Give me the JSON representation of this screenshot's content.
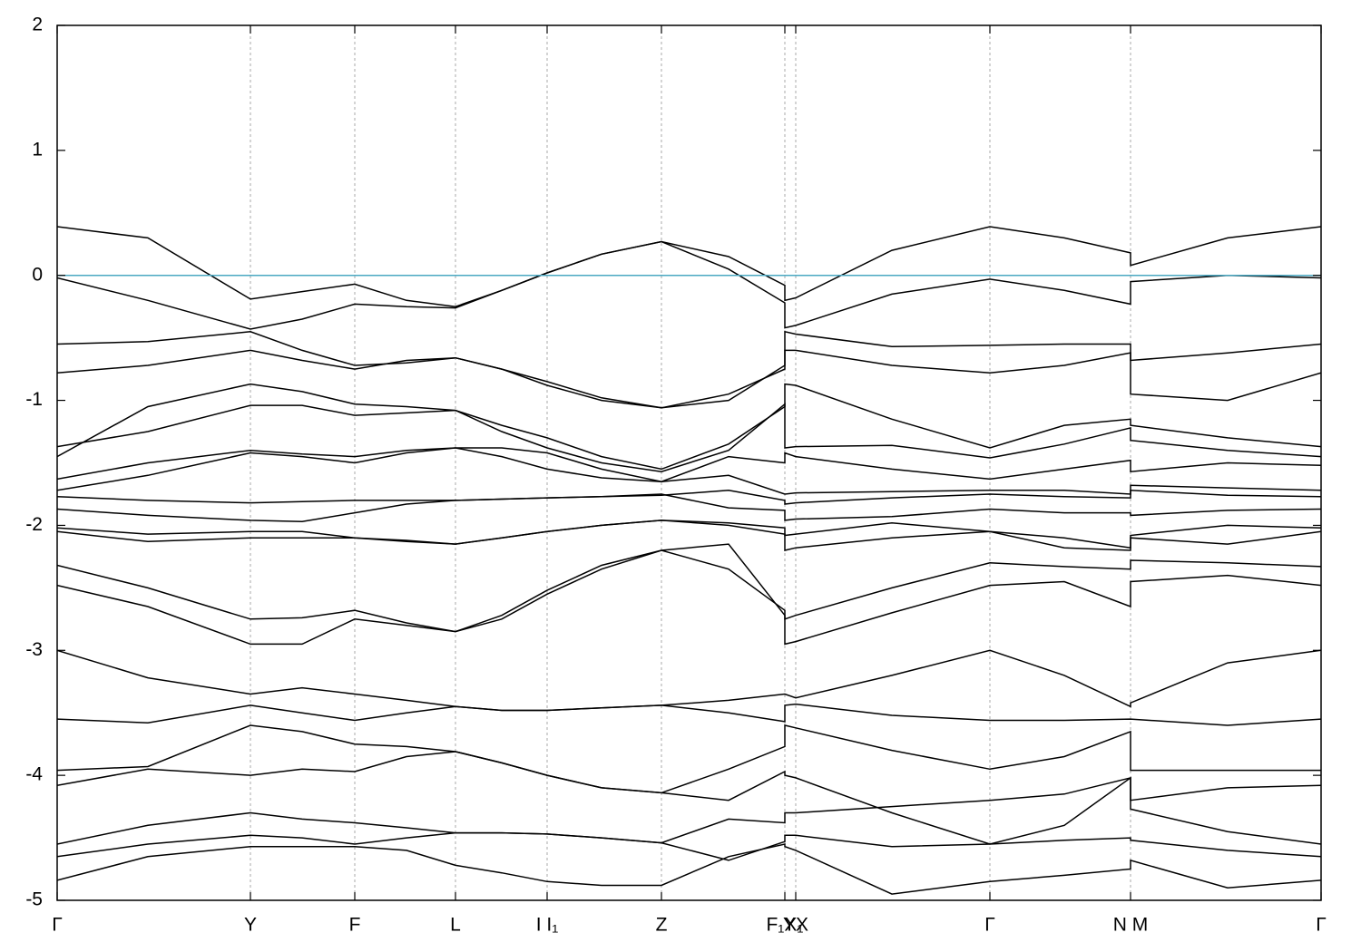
{
  "chart_data": {
    "type": "line",
    "x": [
      0,
      1.0,
      2.13,
      2.7,
      3.28,
      3.85,
      4.39,
      4.9,
      5.4,
      6.0,
      6.66,
      7.4,
      8.02,
      8.02,
      8.14,
      9.2,
      10.28,
      11.1,
      11.83,
      11.83,
      12.9,
      13.93
    ],
    "xlim": [
      0,
      13.93
    ],
    "xticks": [
      {
        "value": 0,
        "label": "Γ"
      },
      {
        "value": 2.13,
        "label": "Y"
      },
      {
        "value": 3.28,
        "label": "F"
      },
      {
        "value": 4.39,
        "label": "L"
      },
      {
        "value": 5.4,
        "label": "I I₁"
      },
      {
        "value": 6.66,
        "label": "Z"
      },
      {
        "value": 8.02,
        "label": "F₁X₁"
      },
      {
        "value": 8.14,
        "label": "YX"
      },
      {
        "value": 10.28,
        "label": "Γ"
      },
      {
        "value": 11.83,
        "label": "N M"
      },
      {
        "value": 13.93,
        "label": "Γ"
      }
    ],
    "ylim": [
      -5,
      2
    ],
    "yticks": [
      2,
      1,
      0,
      -1,
      -2,
      -3,
      -4,
      -5
    ],
    "xgrid": true,
    "series": [
      {
        "color": "#000000",
        "values": [
          0.39,
          0.3,
          -0.19,
          -0.13,
          -0.07,
          -0.2,
          -0.25,
          -0.12,
          0.02,
          0.17,
          0.27,
          0.15,
          -0.08,
          -0.2,
          -0.18,
          0.2,
          0.39,
          0.3,
          0.18,
          0.08,
          0.3,
          0.39
        ]
      },
      {
        "color": "#000000",
        "values": [
          -0.02,
          -0.2,
          -0.43,
          -0.35,
          -0.23,
          -0.25,
          -0.26,
          -0.12,
          0.02,
          0.17,
          0.27,
          0.05,
          -0.22,
          -0.42,
          -0.4,
          -0.15,
          -0.03,
          -0.12,
          -0.23,
          -0.05,
          0.0,
          -0.02
        ]
      },
      {
        "color": "#000000",
        "values": [
          -0.55,
          -0.53,
          -0.45,
          -0.6,
          -0.72,
          -0.7,
          -0.66,
          -0.75,
          -0.88,
          -1.0,
          -1.06,
          -0.95,
          -0.75,
          -0.45,
          -0.47,
          -0.57,
          -0.56,
          -0.55,
          -0.55,
          -0.68,
          -0.62,
          -0.55
        ]
      },
      {
        "color": "#000000",
        "values": [
          -0.78,
          -0.72,
          -0.6,
          -0.68,
          -0.75,
          -0.68,
          -0.66,
          -0.75,
          -0.85,
          -0.98,
          -1.06,
          -1.0,
          -0.72,
          -0.6,
          -0.6,
          -0.72,
          -0.78,
          -0.72,
          -0.62,
          -0.95,
          -1.0,
          -0.78
        ]
      },
      {
        "color": "#000000",
        "values": [
          -1.45,
          -1.05,
          -0.87,
          -0.93,
          -1.03,
          -1.05,
          -1.08,
          -1.2,
          -1.3,
          -1.45,
          -1.55,
          -1.35,
          -1.05,
          -0.87,
          -0.88,
          -1.15,
          -1.38,
          -1.2,
          -1.15,
          -1.2,
          -1.3,
          -1.37
        ]
      },
      {
        "color": "#000000",
        "values": [
          -1.37,
          -1.25,
          -1.04,
          -1.04,
          -1.12,
          -1.1,
          -1.08,
          -1.25,
          -1.38,
          -1.5,
          -1.57,
          -1.4,
          -1.03,
          -1.38,
          -1.37,
          -1.36,
          -1.46,
          -1.35,
          -1.22,
          -1.32,
          -1.4,
          -1.45
        ]
      },
      {
        "color": "#000000",
        "values": [
          -1.63,
          -1.5,
          -1.4,
          -1.43,
          -1.45,
          -1.4,
          -1.38,
          -1.38,
          -1.42,
          -1.55,
          -1.65,
          -1.45,
          -1.5,
          -1.42,
          -1.45,
          -1.55,
          -1.63,
          -1.55,
          -1.48,
          -1.57,
          -1.5,
          -1.52
        ]
      },
      {
        "color": "#000000",
        "values": [
          -1.72,
          -1.6,
          -1.42,
          -1.45,
          -1.5,
          -1.42,
          -1.38,
          -1.45,
          -1.55,
          -1.62,
          -1.65,
          -1.6,
          -1.75,
          -1.75,
          -1.74,
          -1.73,
          -1.72,
          -1.72,
          -1.75,
          -1.68,
          -1.7,
          -1.72
        ]
      },
      {
        "color": "#000000",
        "values": [
          -1.77,
          -1.8,
          -1.82,
          -1.81,
          -1.8,
          -1.8,
          -1.8,
          -1.79,
          -1.78,
          -1.77,
          -1.76,
          -1.72,
          -1.8,
          -1.83,
          -1.82,
          -1.78,
          -1.75,
          -1.77,
          -1.78,
          -1.72,
          -1.76,
          -1.77
        ]
      },
      {
        "color": "#000000",
        "values": [
          -1.87,
          -1.92,
          -1.96,
          -1.97,
          -1.9,
          -1.83,
          -1.8,
          -1.79,
          -1.78,
          -1.77,
          -1.75,
          -1.86,
          -1.88,
          -1.96,
          -1.95,
          -1.93,
          -1.87,
          -1.9,
          -1.9,
          -1.92,
          -1.88,
          -1.87
        ]
      },
      {
        "color": "#000000",
        "values": [
          -2.02,
          -2.07,
          -2.05,
          -2.05,
          -2.1,
          -2.12,
          -2.15,
          -2.1,
          -2.05,
          -2.0,
          -1.96,
          -1.98,
          -2.02,
          -2.08,
          -2.07,
          -1.98,
          -2.05,
          -2.1,
          -2.18,
          -2.08,
          -2.0,
          -2.02
        ]
      },
      {
        "color": "#000000",
        "values": [
          -2.05,
          -2.13,
          -2.1,
          -2.1,
          -2.1,
          -2.13,
          -2.15,
          -2.1,
          -2.05,
          -2.0,
          -1.96,
          -2.0,
          -2.07,
          -2.2,
          -2.18,
          -2.1,
          -2.05,
          -2.18,
          -2.2,
          -2.1,
          -2.15,
          -2.05
        ]
      },
      {
        "color": "#000000",
        "values": [
          -2.32,
          -2.5,
          -2.75,
          -2.74,
          -2.68,
          -2.78,
          -2.85,
          -2.75,
          -2.55,
          -2.35,
          -2.2,
          -2.35,
          -2.68,
          -2.75,
          -2.72,
          -2.5,
          -2.3,
          -2.33,
          -2.35,
          -2.28,
          -2.3,
          -2.33
        ]
      },
      {
        "color": "#000000",
        "values": [
          -2.48,
          -2.65,
          -2.95,
          -2.95,
          -2.75,
          -2.8,
          -2.85,
          -2.72,
          -2.52,
          -2.32,
          -2.2,
          -2.15,
          -2.72,
          -2.95,
          -2.93,
          -2.7,
          -2.48,
          -2.45,
          -2.65,
          -2.45,
          -2.4,
          -2.48
        ]
      },
      {
        "color": "#000000",
        "values": [
          -3.0,
          -3.22,
          -3.35,
          -3.3,
          -3.35,
          -3.4,
          -3.45,
          -3.48,
          -3.48,
          -3.46,
          -3.44,
          -3.4,
          -3.35,
          -3.35,
          -3.38,
          -3.2,
          -3.0,
          -3.2,
          -3.45,
          -3.42,
          -3.1,
          -3.0
        ]
      },
      {
        "color": "#000000",
        "values": [
          -3.55,
          -3.58,
          -3.44,
          -3.5,
          -3.56,
          -3.5,
          -3.45,
          -3.48,
          -3.48,
          -3.46,
          -3.44,
          -3.5,
          -3.57,
          -3.44,
          -3.43,
          -3.52,
          -3.56,
          -3.56,
          -3.55,
          -3.55,
          -3.6,
          -3.55
        ]
      },
      {
        "color": "#000000",
        "values": [
          -3.96,
          -3.93,
          -3.6,
          -3.65,
          -3.75,
          -3.77,
          -3.81,
          -3.9,
          -4.0,
          -4.1,
          -4.14,
          -3.95,
          -3.77,
          -3.6,
          -3.62,
          -3.8,
          -3.95,
          -3.85,
          -3.65,
          -3.96,
          -3.96,
          -3.96
        ]
      },
      {
        "color": "#000000",
        "values": [
          -4.08,
          -3.95,
          -4.0,
          -3.95,
          -3.97,
          -3.85,
          -3.81,
          -3.9,
          -4.0,
          -4.1,
          -4.14,
          -4.2,
          -3.97,
          -4.0,
          -4.02,
          -4.3,
          -4.55,
          -4.4,
          -4.02,
          -4.2,
          -4.1,
          -4.08
        ]
      },
      {
        "color": "#000000",
        "values": [
          -4.55,
          -4.4,
          -4.3,
          -4.35,
          -4.38,
          -4.42,
          -4.46,
          -4.46,
          -4.47,
          -4.5,
          -4.54,
          -4.35,
          -4.38,
          -4.3,
          -4.3,
          -4.25,
          -4.2,
          -4.15,
          -4.02,
          -4.27,
          -4.45,
          -4.55
        ]
      },
      {
        "color": "#000000",
        "values": [
          -4.65,
          -4.55,
          -4.48,
          -4.5,
          -4.55,
          -4.5,
          -4.46,
          -4.46,
          -4.47,
          -4.5,
          -4.54,
          -4.68,
          -4.53,
          -4.48,
          -4.48,
          -4.57,
          -4.55,
          -4.52,
          -4.5,
          -4.52,
          -4.6,
          -4.65
        ]
      },
      {
        "color": "#000000",
        "values": [
          -4.84,
          -4.65,
          -4.57,
          -4.57,
          -4.57,
          -4.6,
          -4.72,
          -4.78,
          -4.85,
          -4.88,
          -4.88,
          -4.65,
          -4.55,
          -4.57,
          -4.6,
          -4.95,
          -4.85,
          -4.8,
          -4.75,
          -4.68,
          -4.9,
          -4.84
        ]
      },
      {
        "color": "#4ba8c2",
        "values": [
          0,
          0,
          0,
          0,
          0,
          0,
          0,
          0,
          0,
          0,
          0,
          0,
          0,
          0,
          0,
          0,
          0,
          0,
          0,
          0,
          0,
          0
        ]
      }
    ]
  }
}
